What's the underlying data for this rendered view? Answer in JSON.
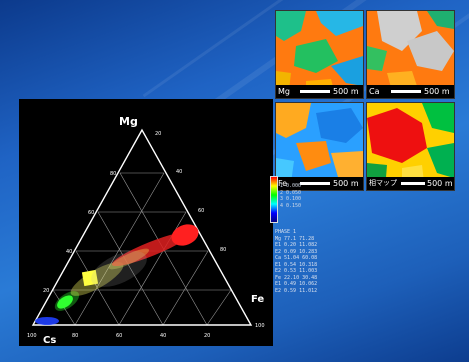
{
  "ternary": {
    "top_label": "Mg",
    "right_label": "Fe",
    "bottom_label": "Cs",
    "tick_labels_right": [
      "20",
      "40",
      "60",
      "80",
      "100"
    ],
    "tick_labels_bottom": [
      "100",
      "80",
      "60",
      "40",
      "20"
    ],
    "tick_labels_left": [
      "20",
      "40",
      "60",
      "80"
    ],
    "colors": {
      "red": "#ff2020",
      "yellow": "#ffff40",
      "green": "#30ff30",
      "blue": "#2040ff"
    }
  },
  "maps": [
    {
      "element": "Mg",
      "scale": "500",
      "unit": "m"
    },
    {
      "element": "Ca",
      "scale": "500",
      "unit": "m"
    },
    {
      "element": "Fe",
      "scale": "500",
      "unit": "m"
    },
    {
      "element": "相マップ",
      "scale": "500",
      "unit": "m"
    }
  ],
  "levels": [
    "1  0.000",
    "2  0.050",
    "3  0.100",
    "4  0.150"
  ],
  "stats": [
    "PHASE 1",
    "Mg  77.1  71.28",
    "E1  0.20  11.082",
    "E2  0.09  10.283",
    "Ca  51.04  60.08",
    "E1  0.54  10.318",
    "E2  0.53  11.003",
    "Fe  22.10  30.48",
    "E1  0.49  10.062",
    "E2  0.59  11.012"
  ]
}
